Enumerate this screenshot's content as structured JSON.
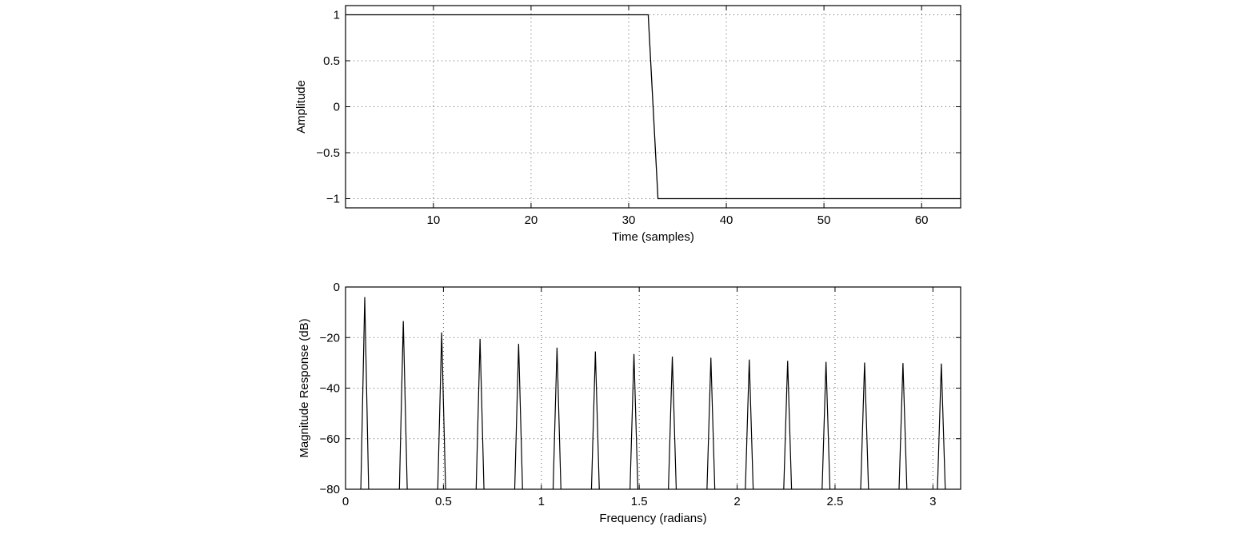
{
  "chart_data": [
    {
      "type": "line",
      "title": "",
      "xlabel": "Time (samples)",
      "ylabel": "Amplitude",
      "xlim": [
        1,
        64
      ],
      "ylim": [
        -1.1,
        1.1
      ],
      "grid": true,
      "x_ticks": [
        10,
        20,
        30,
        40,
        50,
        60
      ],
      "x_tick_labels": [
        "10",
        "20",
        "30",
        "40",
        "50",
        "60"
      ],
      "y_ticks": [
        1,
        0.5,
        0,
        -0.5,
        -1
      ],
      "y_tick_labels": [
        "1",
        "0.5",
        "0",
        "−0.5",
        "−1"
      ],
      "series": [
        {
          "x": [
            1,
            32,
            33,
            64
          ],
          "y": [
            1,
            1,
            -1,
            -1
          ],
          "color": "#000000"
        }
      ]
    },
    {
      "type": "line",
      "title": "",
      "xlabel": "Frequency (radians)",
      "ylabel": "Magnitude Response (dB)",
      "xlim": [
        0,
        3.1416
      ],
      "ylim": [
        -80,
        0
      ],
      "grid": true,
      "x_ticks": [
        0,
        0.5,
        1,
        1.5,
        2,
        2.5,
        3
      ],
      "x_tick_labels": [
        "0",
        "0.5",
        "1",
        "1.5",
        "2",
        "2.5",
        "3"
      ],
      "y_ticks": [
        0,
        -20,
        -40,
        -60,
        -80
      ],
      "y_tick_labels": [
        "0",
        "−20",
        "−40",
        "−60",
        "−80"
      ],
      "spike_halfwidth": 0.02,
      "series": [
        {
          "color": "#000000",
          "peaks_x": [
            0.098,
            0.295,
            0.491,
            0.687,
            0.884,
            1.08,
            1.276,
            1.473,
            1.669,
            1.866,
            2.062,
            2.258,
            2.454,
            2.651,
            2.847,
            3.043
          ],
          "peaks_y": [
            -4,
            -13.5,
            -18,
            -20.5,
            -22.5,
            -24,
            -25.5,
            -26.5,
            -27.5,
            -28,
            -28.7,
            -29.2,
            -29.6,
            -29.9,
            -30.1,
            -30.3
          ]
        }
      ]
    }
  ]
}
